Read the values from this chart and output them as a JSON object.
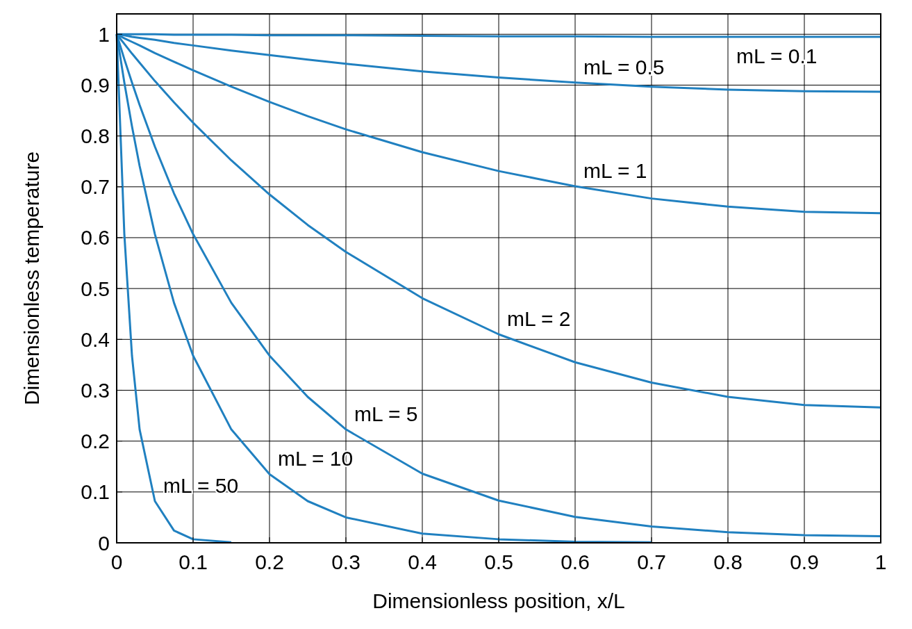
{
  "chart_data": {
    "type": "line",
    "xlabel": "Dimensionless position, x/L",
    "ylabel": "Dimensionless temperature",
    "x": [
      0,
      0.01,
      0.02,
      0.03,
      0.05,
      0.075,
      0.1,
      0.15,
      0.2,
      0.25,
      0.3,
      0.4,
      0.5,
      0.6,
      0.7,
      0.8,
      0.9,
      1
    ],
    "series": [
      {
        "color": "#2080c0",
        "values": [
          1,
          1,
          1,
          1,
          1,
          0.999,
          0.999,
          0.999,
          0.998,
          0.998,
          0.998,
          0.997,
          0.996,
          0.996,
          0.995,
          0.995,
          0.995,
          0.995
        ]
      },
      {
        "color": "#2080c0",
        "values": [
          1,
          0.998,
          0.995,
          0.993,
          0.989,
          0.983,
          0.978,
          0.968,
          0.959,
          0.95,
          0.942,
          0.927,
          0.915,
          0.905,
          0.897,
          0.891,
          0.888,
          0.887
        ]
      },
      {
        "color": "#2080c0",
        "values": [
          1,
          0.992,
          0.985,
          0.978,
          0.963,
          0.946,
          0.929,
          0.897,
          0.867,
          0.839,
          0.813,
          0.768,
          0.731,
          0.701,
          0.677,
          0.661,
          0.651,
          0.648
        ]
      },
      {
        "color": "#2080c0",
        "values": [
          1,
          0.981,
          0.962,
          0.944,
          0.908,
          0.866,
          0.826,
          0.752,
          0.685,
          0.625,
          0.572,
          0.481,
          0.41,
          0.355,
          0.315,
          0.287,
          0.271,
          0.266
        ]
      },
      {
        "color": "#2080c0",
        "values": [
          1,
          0.951,
          0.905,
          0.861,
          0.779,
          0.687,
          0.607,
          0.472,
          0.368,
          0.287,
          0.223,
          0.136,
          0.083,
          0.051,
          0.032,
          0.021,
          0.015,
          0.013
        ]
      },
      {
        "color": "#2080c0",
        "values": [
          1,
          0.905,
          0.819,
          0.741,
          0.607,
          0.472,
          0.368,
          0.223,
          0.135,
          0.082,
          0.05,
          0.018,
          0.007,
          0.002,
          0.001,
          null,
          null,
          null
        ]
      },
      {
        "color": "#2080c0",
        "values": [
          1,
          0.607,
          0.368,
          0.223,
          0.082,
          0.024,
          0.007,
          0.001,
          null,
          null,
          null,
          null,
          null,
          null,
          null,
          null,
          null,
          null
        ]
      }
    ],
    "xlim": [
      0,
      1
    ],
    "ylim": [
      0,
      1.04
    ],
    "xticks": [
      0,
      0.1,
      0.2,
      0.3,
      0.4,
      0.5,
      0.6,
      0.7,
      0.8,
      0.9,
      1
    ],
    "yticks": [
      0,
      0.1,
      0.2,
      0.3,
      0.4,
      0.5,
      0.6,
      0.7,
      0.8,
      0.9,
      1
    ],
    "grid": true,
    "line_style": "solid",
    "annotations": [
      {
        "text": "mL = 0.1",
        "x": 0.8,
        "y": 0.995
      },
      {
        "text": "mL = 0.5",
        "x": 0.6,
        "y": 0.905
      },
      {
        "text": "mL = 1",
        "x": 0.6,
        "y": 0.701
      },
      {
        "text": "mL = 2",
        "x": 0.5,
        "y": 0.41
      },
      {
        "text": "mL = 5",
        "x": 0.3,
        "y": 0.223
      },
      {
        "text": "mL = 10",
        "x": 0.2,
        "y": 0.135
      },
      {
        "text": "mL = 50",
        "x": 0.05,
        "y": 0.082
      }
    ]
  }
}
